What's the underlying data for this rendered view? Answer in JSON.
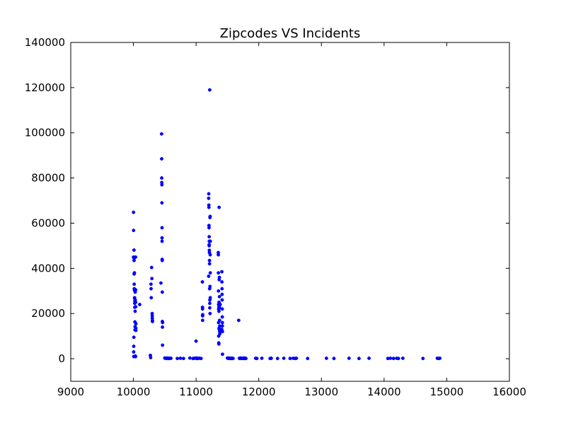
{
  "chart_data": {
    "type": "scatter",
    "title": "Zipcodes VS Incidents",
    "xlabel": "",
    "ylabel": "",
    "xlim": [
      9000,
      16000
    ],
    "ylim": [
      -10000,
      140000
    ],
    "xticks": [
      9000,
      10000,
      11000,
      12000,
      13000,
      14000,
      15000,
      16000
    ],
    "yticks": [
      0,
      20000,
      40000,
      60000,
      80000,
      100000,
      120000,
      140000
    ],
    "xtick_labels": [
      "9000",
      "10000",
      "11000",
      "12000",
      "13000",
      "14000",
      "15000",
      "16000"
    ],
    "ytick_labels": [
      "0",
      "20000",
      "40000",
      "60000",
      "80000",
      "100000",
      "120000",
      "140000"
    ],
    "grid": false,
    "marker_color": "#0000ff",
    "series": [
      {
        "points": [
          [
            10001,
            64800
          ],
          [
            10002,
            45000
          ],
          [
            10003,
            56800
          ],
          [
            10004,
            3000
          ],
          [
            10005,
            5500
          ],
          [
            10006,
            1000
          ],
          [
            10007,
            9500
          ],
          [
            10009,
            48100
          ],
          [
            10010,
            44500
          ],
          [
            10011,
            43500
          ],
          [
            10012,
            37500
          ],
          [
            10013,
            33000
          ],
          [
            10014,
            31000
          ],
          [
            10016,
            38000
          ],
          [
            10017,
            30300
          ],
          [
            10018,
            26800
          ],
          [
            10019,
            27000
          ],
          [
            10021,
            24500
          ],
          [
            10022,
            22800
          ],
          [
            10023,
            25500
          ],
          [
            10024,
            16300
          ],
          [
            10025,
            12800
          ],
          [
            10026,
            14200
          ],
          [
            10027,
            21000
          ],
          [
            10028,
            29500
          ],
          [
            10029,
            26000
          ],
          [
            10030,
            1100
          ],
          [
            10031,
            1200
          ],
          [
            10032,
            1000
          ],
          [
            10033,
            900
          ],
          [
            10034,
            45000
          ],
          [
            10035,
            30500
          ],
          [
            10036,
            25000
          ],
          [
            10037,
            23000
          ],
          [
            10038,
            13500
          ],
          [
            10039,
            12500
          ],
          [
            10040,
            15500
          ],
          [
            10101,
            24000
          ],
          [
            10270,
            1500
          ],
          [
            10275,
            500
          ],
          [
            10280,
            33000
          ],
          [
            10282,
            31000
          ],
          [
            10285,
            27000
          ],
          [
            10290,
            40400
          ],
          [
            10295,
            35500
          ],
          [
            10300,
            20000
          ],
          [
            10301,
            19000
          ],
          [
            10302,
            18000
          ],
          [
            10303,
            17000
          ],
          [
            10304,
            16500
          ],
          [
            10440,
            33500
          ],
          [
            10450,
            99500
          ],
          [
            10451,
            88500
          ],
          [
            10452,
            80000
          ],
          [
            10453,
            78000
          ],
          [
            10454,
            77000
          ],
          [
            10455,
            69000
          ],
          [
            10456,
            58000
          ],
          [
            10457,
            53500
          ],
          [
            10458,
            52000
          ],
          [
            10459,
            44000
          ],
          [
            10460,
            43500
          ],
          [
            10461,
            29500
          ],
          [
            10462,
            16500
          ],
          [
            10463,
            14000
          ],
          [
            10464,
            6000
          ],
          [
            10465,
            16000
          ],
          [
            10501,
            300
          ],
          [
            10510,
            200
          ],
          [
            10520,
            200
          ],
          [
            10530,
            100
          ],
          [
            10540,
            300
          ],
          [
            10550,
            200
          ],
          [
            10560,
            100
          ],
          [
            10570,
            200
          ],
          [
            10580,
            100
          ],
          [
            10600,
            200
          ],
          [
            10700,
            100
          ],
          [
            10750,
            200
          ],
          [
            10800,
            100
          ],
          [
            10900,
            300
          ],
          [
            10950,
            100
          ],
          [
            10970,
            200
          ],
          [
            11000,
            7800
          ],
          [
            11020,
            100
          ],
          [
            11050,
            200
          ],
          [
            11080,
            100
          ],
          [
            11001,
            200
          ],
          [
            11003,
            300
          ],
          [
            11010,
            100
          ],
          [
            11040,
            200
          ],
          [
            11101,
            34000
          ],
          [
            11102,
            22800
          ],
          [
            11103,
            22000
          ],
          [
            11104,
            19000
          ],
          [
            11105,
            17000
          ],
          [
            11106,
            19500
          ],
          [
            11200,
            36500
          ],
          [
            11201,
            71000
          ],
          [
            11203,
            73000
          ],
          [
            11204,
            68000
          ],
          [
            11205,
            67000
          ],
          [
            11206,
            59000
          ],
          [
            11207,
            58000
          ],
          [
            11208,
            50500
          ],
          [
            11209,
            50000
          ],
          [
            11210,
            54000
          ],
          [
            11211,
            52000
          ],
          [
            11212,
            48000
          ],
          [
            11213,
            47000
          ],
          [
            11214,
            43500
          ],
          [
            11215,
            42000
          ],
          [
            11216,
            31000
          ],
          [
            11217,
            119000
          ],
          [
            11218,
            24500
          ],
          [
            11219,
            22500
          ],
          [
            11220,
            26000
          ],
          [
            11221,
            62500
          ],
          [
            11222,
            32000
          ],
          [
            11223,
            20000
          ],
          [
            11224,
            63000
          ],
          [
            11225,
            46000
          ],
          [
            11226,
            38000
          ],
          [
            11227,
            27000
          ],
          [
            11228,
            52000
          ],
          [
            11354,
            47000
          ],
          [
            11355,
            46000
          ],
          [
            11356,
            38000
          ],
          [
            11357,
            30000
          ],
          [
            11358,
            16000
          ],
          [
            11359,
            24000
          ],
          [
            11360,
            22000
          ],
          [
            11361,
            10000
          ],
          [
            11362,
            7000
          ],
          [
            11363,
            6500
          ],
          [
            11364,
            23000
          ],
          [
            11365,
            21000
          ],
          [
            11366,
            13500
          ],
          [
            11367,
            25000
          ],
          [
            11368,
            67000
          ],
          [
            11369,
            35000
          ],
          [
            11370,
            23000
          ],
          [
            11371,
            13000
          ],
          [
            11372,
            36000
          ],
          [
            11373,
            27500
          ],
          [
            11374,
            22500
          ],
          [
            11375,
            17000
          ],
          [
            11377,
            12000
          ],
          [
            11378,
            14500
          ],
          [
            11379,
            11000
          ],
          [
            11385,
            24000
          ],
          [
            11411,
            13000
          ],
          [
            11412,
            38500
          ],
          [
            11413,
            34000
          ],
          [
            11414,
            31000
          ],
          [
            11415,
            28500
          ],
          [
            11416,
            26000
          ],
          [
            11417,
            22000
          ],
          [
            11418,
            18500
          ],
          [
            11419,
            16000
          ],
          [
            11420,
            14500
          ],
          [
            11421,
            12000
          ],
          [
            11422,
            2000
          ],
          [
            11500,
            300
          ],
          [
            11510,
            200
          ],
          [
            11520,
            100
          ],
          [
            11530,
            300
          ],
          [
            11540,
            200
          ],
          [
            11550,
            100
          ],
          [
            11560,
            200
          ],
          [
            11570,
            100
          ],
          [
            11580,
            200
          ],
          [
            11590,
            100
          ],
          [
            11680,
            17000
          ],
          [
            11690,
            200
          ],
          [
            11700,
            100
          ],
          [
            11710,
            300
          ],
          [
            11720,
            200
          ],
          [
            11730,
            100
          ],
          [
            11740,
            200
          ],
          [
            11750,
            100
          ],
          [
            11760,
            300
          ],
          [
            11770,
            200
          ],
          [
            11780,
            100
          ],
          [
            11790,
            200
          ],
          [
            11795,
            100
          ],
          [
            11950,
            200
          ],
          [
            11970,
            100
          ],
          [
            12050,
            200
          ],
          [
            12180,
            100
          ],
          [
            12200,
            200
          ],
          [
            12300,
            100
          ],
          [
            12400,
            200
          ],
          [
            12500,
            100
          ],
          [
            12550,
            200
          ],
          [
            12580,
            100
          ],
          [
            12600,
            200
          ],
          [
            12780,
            100
          ],
          [
            13080,
            200
          ],
          [
            13200,
            100
          ],
          [
            13440,
            200
          ],
          [
            13600,
            100
          ],
          [
            13760,
            200
          ],
          [
            14060,
            100
          ],
          [
            14100,
            200
          ],
          [
            14150,
            100
          ],
          [
            14200,
            200
          ],
          [
            14230,
            100
          ],
          [
            14300,
            200
          ],
          [
            14620,
            100
          ],
          [
            14850,
            200
          ],
          [
            14870,
            100
          ],
          [
            14890,
            200
          ]
        ]
      }
    ]
  }
}
